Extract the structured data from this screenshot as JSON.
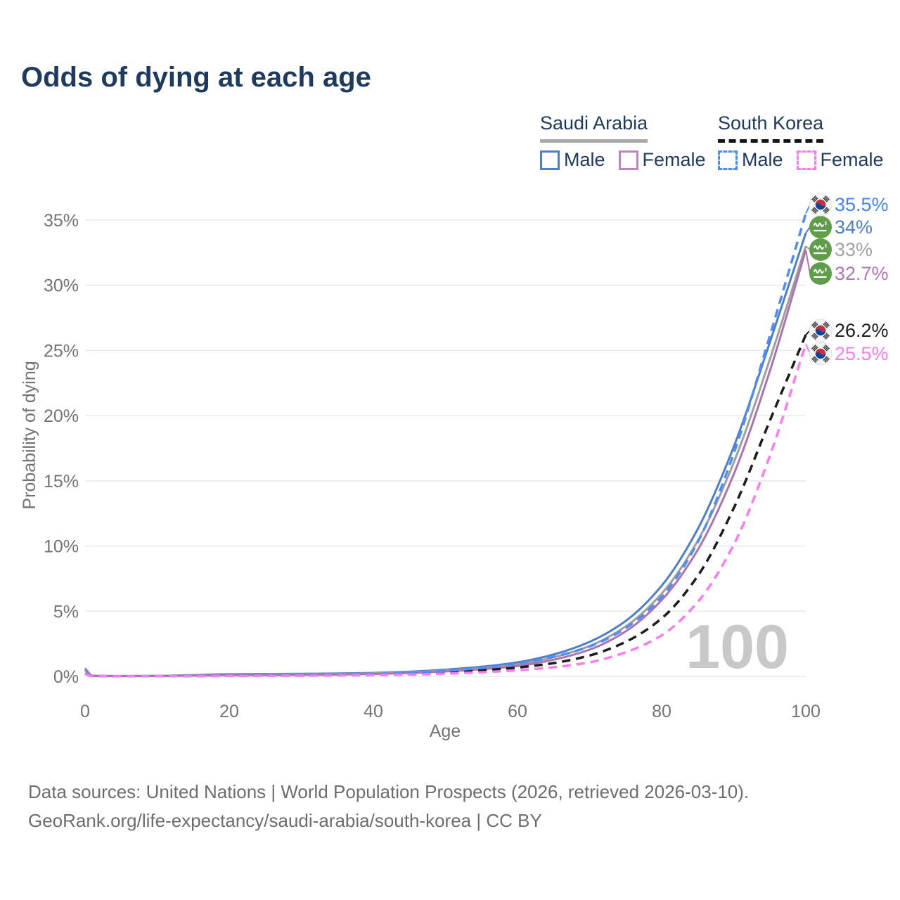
{
  "title": "Odds of dying at each age",
  "legend": {
    "groups": [
      {
        "label": "Saudi Arabia",
        "line_style": "solid",
        "line_color": "#a9a9a9",
        "items": [
          {
            "label": "Male",
            "color": "#4d7ec9"
          },
          {
            "label": "Female",
            "color": "#bd85c2"
          }
        ]
      },
      {
        "label": "South Korea",
        "line_style": "dashed",
        "line_color": "#141414",
        "items": [
          {
            "label": "Male",
            "color": "#4e8df5"
          },
          {
            "label": "Female",
            "color": "#fb7bf0"
          }
        ]
      }
    ]
  },
  "chart_data": {
    "type": "line",
    "title": "Odds of dying at each age",
    "xlabel": "Age",
    "ylabel": "Probability of dying",
    "xlim": [
      0,
      100
    ],
    "ylim": [
      0,
      37
    ],
    "grid": "horizontal",
    "x_ticks": [
      0,
      20,
      40,
      60,
      80,
      100
    ],
    "y_ticks": [
      {
        "value": 0,
        "label": "0%"
      },
      {
        "value": 5,
        "label": "5%"
      },
      {
        "value": 10,
        "label": "10%"
      },
      {
        "value": 15,
        "label": "15%"
      },
      {
        "value": 20,
        "label": "20%"
      },
      {
        "value": 25,
        "label": "25%"
      },
      {
        "value": 30,
        "label": "30%"
      },
      {
        "value": 35,
        "label": "35%"
      }
    ],
    "watermark": "100",
    "ages": [
      0,
      1,
      5,
      10,
      15,
      20,
      25,
      30,
      35,
      40,
      45,
      50,
      55,
      60,
      65,
      70,
      75,
      80,
      85,
      90,
      95,
      100
    ],
    "series": [
      {
        "name": "Saudi Arabia Male",
        "country": "Saudi Arabia",
        "sex": "Male",
        "color": "#4d7ec9",
        "dash": "solid",
        "flag": "saudi-arabia",
        "end_label": "35.5%-ordered-below",
        "values": []
      },
      {
        "name": "placeholder",
        "values": []
      }
    ]
  },
  "footer": {
    "line1": "Data sources: United Nations | World Population Prospects (2026, retrieved 2026-03-10).",
    "line2": "GeoRank.org/life-expectancy/saudi-arabia/south-korea | CC BY"
  }
}
